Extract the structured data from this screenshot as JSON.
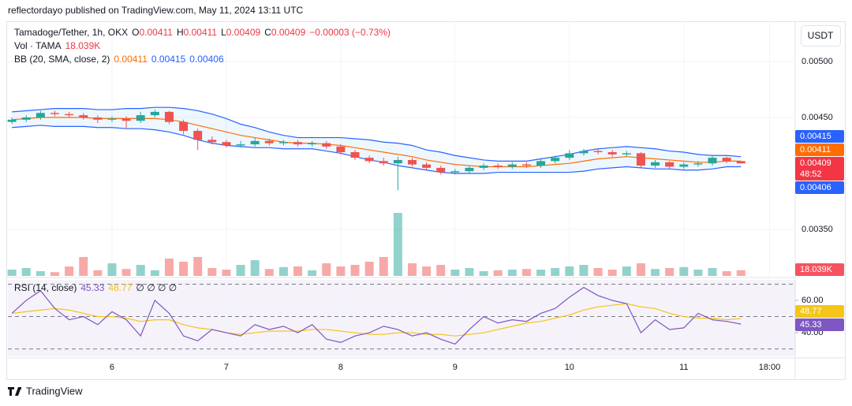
{
  "header": {
    "published": "reflectordayo published on TradingView.com, May 11, 2024 13:11 UTC",
    "currency": "USDT",
    "brand": "TradingView"
  },
  "chart_data": {
    "type": "candlestick",
    "legend": {
      "symbol": "Tamadoge/Tether, 1h, OKX",
      "keys": [
        "O",
        "H",
        "L",
        "C"
      ],
      "change": "−0.00003 (−0.73%)",
      "volume": "Vol · TAMA",
      "bb": "BB (20, SMA, close, 2)",
      "rsi": "RSI (14, close)",
      "rsi_extra": "∅ ∅ ∅ ∅",
      "countdown": "48:52"
    },
    "up_color": "#26a69a",
    "down_color": "#ef5350",
    "x": [
      -21,
      -18,
      -15,
      -12,
      -9,
      -6,
      -3,
      0,
      3,
      6,
      9,
      12,
      15,
      18,
      21,
      24,
      27,
      30,
      33,
      36,
      39,
      42,
      45,
      48,
      51,
      54,
      57,
      60,
      63,
      66,
      69,
      72,
      75,
      78,
      81,
      84,
      87,
      90,
      93,
      96,
      99,
      102,
      105,
      108,
      111,
      114,
      117,
      120,
      123,
      126,
      129,
      132
    ],
    "open": [
      0.00446,
      0.00448,
      0.0045,
      0.00454,
      0.00453,
      0.00452,
      0.0045,
      0.00448,
      0.00449,
      0.00447,
      0.00452,
      0.00455,
      0.00446,
      0.00438,
      0.0043,
      0.00428,
      0.00425,
      0.00426,
      0.00429,
      0.00427,
      0.00428,
      0.00426,
      0.00427,
      0.00424,
      0.00419,
      0.00414,
      0.00411,
      0.00409,
      0.00412,
      0.00408,
      0.00405,
      0.00401,
      0.00402,
      0.00405,
      0.00407,
      0.00406,
      0.00408,
      0.00407,
      0.00411,
      0.00414,
      0.00418,
      0.0042,
      0.00419,
      0.00417,
      0.00418,
      0.00407,
      0.0041,
      0.00406,
      0.00408,
      0.00409,
      0.00414,
      0.00411
    ],
    "high": [
      0.0045,
      0.00452,
      0.00456,
      0.00456,
      0.00455,
      0.00454,
      0.00452,
      0.00451,
      0.00451,
      0.00455,
      0.00457,
      0.00456,
      0.00448,
      0.0044,
      0.00433,
      0.0043,
      0.00429,
      0.00432,
      0.00431,
      0.0043,
      0.0043,
      0.00429,
      0.00429,
      0.00426,
      0.00421,
      0.00416,
      0.00414,
      0.00415,
      0.00414,
      0.0041,
      0.00407,
      0.00404,
      0.00407,
      0.00409,
      0.00409,
      0.0041,
      0.0041,
      0.00413,
      0.00416,
      0.00421,
      0.00422,
      0.00422,
      0.00421,
      0.0042,
      0.00419,
      0.00412,
      0.00411,
      0.0041,
      0.00411,
      0.00416,
      0.00415,
      0.00411
    ],
    "low": [
      0.00444,
      0.00446,
      0.00448,
      0.00451,
      0.0045,
      0.00448,
      0.00445,
      0.00446,
      0.0044,
      0.00445,
      0.0045,
      0.00444,
      0.00435,
      0.00421,
      0.00426,
      0.00423,
      0.00423,
      0.00424,
      0.00425,
      0.00425,
      0.00424,
      0.00424,
      0.00422,
      0.00417,
      0.00412,
      0.00409,
      0.00407,
      0.00385,
      0.00406,
      0.00403,
      0.00399,
      0.00399,
      0.004,
      0.00403,
      0.00404,
      0.00404,
      0.00405,
      0.00405,
      0.00409,
      0.00412,
      0.00416,
      0.00417,
      0.00415,
      0.00415,
      0.00405,
      0.00405,
      0.00404,
      0.00404,
      0.00406,
      0.00407,
      0.00409,
      0.00409
    ],
    "close": [
      0.00448,
      0.0045,
      0.00454,
      0.00453,
      0.00452,
      0.0045,
      0.00448,
      0.00449,
      0.00447,
      0.00452,
      0.00455,
      0.00446,
      0.00438,
      0.0043,
      0.00428,
      0.00425,
      0.00426,
      0.00429,
      0.00427,
      0.00428,
      0.00426,
      0.00427,
      0.00424,
      0.00419,
      0.00414,
      0.00411,
      0.00409,
      0.00412,
      0.00408,
      0.00405,
      0.00401,
      0.00402,
      0.00405,
      0.00407,
      0.00406,
      0.00408,
      0.00407,
      0.00411,
      0.00414,
      0.00418,
      0.0042,
      0.00419,
      0.00417,
      0.00418,
      0.00407,
      0.0041,
      0.00406,
      0.00408,
      0.00409,
      0.00414,
      0.00411,
      0.00409
    ],
    "volume": [
      20000,
      25000,
      15000,
      12000,
      30000,
      60000,
      18000,
      40000,
      22000,
      35000,
      18000,
      55000,
      45000,
      60000,
      25000,
      20000,
      35000,
      50000,
      22000,
      28000,
      30000,
      18000,
      40000,
      30000,
      35000,
      45000,
      60000,
      200000,
      40000,
      30000,
      35000,
      20000,
      25000,
      15000,
      18000,
      20000,
      22000,
      20000,
      25000,
      30000,
      35000,
      25000,
      20000,
      30000,
      40000,
      22000,
      25000,
      28000,
      20000,
      25000,
      15000,
      18039
    ],
    "volume_label": "18.039K",
    "volume_lim": [
      0,
      250000
    ],
    "bb_basis": [
      0.00448,
      0.00449,
      0.0045,
      0.0045,
      0.0045,
      0.0045,
      0.00449,
      0.00449,
      0.00449,
      0.00449,
      0.00449,
      0.00448,
      0.00446,
      0.00443,
      0.0044,
      0.00437,
      0.00434,
      0.00432,
      0.0043,
      0.00428,
      0.00427,
      0.00427,
      0.00426,
      0.00425,
      0.00423,
      0.00421,
      0.00419,
      0.00417,
      0.00415,
      0.00412,
      0.0041,
      0.00408,
      0.00407,
      0.00406,
      0.00406,
      0.00406,
      0.00406,
      0.00407,
      0.00408,
      0.00409,
      0.00411,
      0.00413,
      0.00414,
      0.00415,
      0.00414,
      0.00413,
      0.00412,
      0.00411,
      0.0041,
      0.0041,
      0.00411,
      0.00411
    ],
    "bb_upper": [
      0.00455,
      0.00456,
      0.00457,
      0.00458,
      0.00458,
      0.00458,
      0.00457,
      0.00457,
      0.00458,
      0.00458,
      0.00459,
      0.00459,
      0.00458,
      0.00456,
      0.00453,
      0.00449,
      0.00444,
      0.00441,
      0.00437,
      0.00434,
      0.00432,
      0.00432,
      0.00432,
      0.00432,
      0.00431,
      0.0043,
      0.00428,
      0.00427,
      0.00425,
      0.00421,
      0.00419,
      0.00416,
      0.00414,
      0.00412,
      0.00411,
      0.00411,
      0.00411,
      0.00413,
      0.00415,
      0.00417,
      0.0042,
      0.00422,
      0.00423,
      0.00424,
      0.00423,
      0.00422,
      0.0042,
      0.00419,
      0.00417,
      0.00416,
      0.00416,
      0.00415
    ],
    "bb_lower": [
      0.00441,
      0.00442,
      0.00443,
      0.00442,
      0.00442,
      0.00442,
      0.00441,
      0.00441,
      0.0044,
      0.0044,
      0.00439,
      0.00437,
      0.00434,
      0.0043,
      0.00427,
      0.00425,
      0.00424,
      0.00423,
      0.00423,
      0.00422,
      0.00422,
      0.00422,
      0.0042,
      0.00418,
      0.00415,
      0.00412,
      0.0041,
      0.00407,
      0.00405,
      0.00403,
      0.00401,
      0.004,
      0.004,
      0.004,
      0.00401,
      0.00401,
      0.00401,
      0.00401,
      0.00401,
      0.00401,
      0.00402,
      0.00404,
      0.00405,
      0.00406,
      0.00405,
      0.00404,
      0.00404,
      0.00403,
      0.00403,
      0.00404,
      0.00406,
      0.00406
    ],
    "bb_basis_color": "#ff6d00",
    "bb_band_color": "#2962ff",
    "xlim": [
      -21.85,
      143.38
    ],
    "xticks": [
      {
        "value": 0,
        "label": "6"
      },
      {
        "value": 24,
        "label": "7"
      },
      {
        "value": 48,
        "label": "8"
      },
      {
        "value": 72,
        "label": "9"
      },
      {
        "value": 96,
        "label": "10"
      },
      {
        "value": 120,
        "label": "11"
      },
      {
        "value": 138,
        "label": "18:00"
      }
    ],
    "ylim": [
      0.0030845,
      0.005359
    ],
    "yticks": [
      {
        "value": 0.005,
        "label": "0.00500"
      },
      {
        "value": 0.0045,
        "label": "0.00450"
      },
      {
        "value": 0.0035,
        "label": "0.00350"
      }
    ],
    "rsi": {
      "values": [
        52,
        60,
        66,
        55,
        48,
        50,
        45,
        53,
        48,
        38,
        60,
        52,
        38,
        35,
        42,
        40,
        38,
        45,
        42,
        44,
        40,
        45,
        36,
        34,
        38,
        40,
        44,
        42,
        38,
        40,
        36,
        33,
        42,
        50,
        46,
        48,
        47,
        52,
        55,
        62,
        68,
        63,
        60,
        58,
        40,
        48,
        42,
        43,
        52,
        48,
        47,
        45.33
      ],
      "ma": [
        52,
        53,
        54,
        55,
        54,
        52,
        50,
        50,
        49,
        47,
        48,
        48,
        45,
        43,
        42,
        40,
        39,
        40,
        41,
        41,
        41,
        42,
        42,
        41,
        40,
        39,
        39,
        40,
        40,
        39,
        39,
        38,
        39,
        40,
        42,
        44,
        46,
        47,
        49,
        51,
        54,
        56,
        57,
        58,
        56,
        55,
        52,
        50,
        49,
        49,
        48,
        48.77
      ],
      "color": "#7e57c2",
      "ma_color": "#f5c518",
      "ylim": [
        25.4,
        72.7
      ],
      "yticks": [
        {
          "value": 60,
          "label": "60.00"
        },
        {
          "value": 40,
          "label": "40.00"
        }
      ],
      "levels": [
        70,
        50,
        30
      ]
    }
  }
}
